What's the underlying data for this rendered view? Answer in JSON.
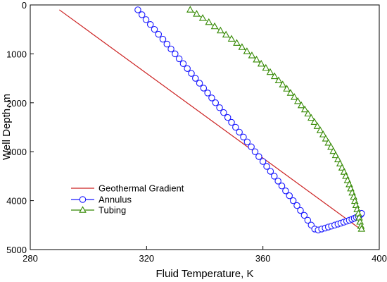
{
  "chart_data": {
    "type": "line",
    "xlabel": "Fluid Temperature, K",
    "ylabel": "Well Depth, m",
    "xlim": [
      280,
      400
    ],
    "ylim": [
      0,
      5000
    ],
    "y_inverted": true,
    "xticks": [
      280,
      320,
      360,
      400
    ],
    "yticks": [
      0,
      1000,
      2000,
      3000,
      4000,
      5000
    ],
    "grid": false,
    "legend_position": "lower-left",
    "colors": {
      "geothermal": "#cc2222",
      "annulus": "#1a1aff",
      "tubing": "#338800",
      "overlap": "#8a5a1a"
    },
    "series": [
      {
        "name": "Geothermal Gradient",
        "style": "line",
        "x": [
          290.0,
          393.5
        ],
        "y": [
          100,
          4580
        ]
      },
      {
        "name": "Annulus",
        "style": "line-circle-markers",
        "x": [
          317.0,
          318.4,
          319.8,
          321.3,
          322.7,
          324.1,
          325.6,
          327.0,
          328.4,
          329.8,
          331.2,
          332.6,
          334.0,
          335.4,
          336.8,
          338.2,
          339.6,
          341.0,
          342.4,
          343.7,
          345.1,
          346.5,
          347.9,
          349.2,
          350.6,
          351.9,
          353.3,
          354.6,
          356.0,
          357.3,
          358.6,
          360.0,
          361.3,
          362.6,
          363.9,
          365.2,
          366.5,
          367.8,
          369.1,
          370.4,
          371.7,
          372.9,
          374.2,
          375.4,
          376.6,
          377.8,
          379.0,
          380.2,
          381.4,
          382.5,
          383.6,
          384.7,
          385.8,
          386.8,
          387.8,
          388.8,
          389.7,
          390.6,
          391.4,
          392.1,
          392.8,
          393.3,
          393.7,
          393.9
        ],
        "y": [
          100,
          200,
          300,
          400,
          500,
          600,
          700,
          800,
          900,
          1000,
          1100,
          1200,
          1300,
          1400,
          1500,
          1600,
          1700,
          1800,
          1900,
          2000,
          2100,
          2200,
          2300,
          2400,
          2500,
          2600,
          2700,
          2800,
          2900,
          3000,
          3100,
          3200,
          3300,
          3400,
          3500,
          3600,
          3700,
          3800,
          3900,
          4000,
          4100,
          4200,
          4300,
          4400,
          4500,
          4580,
          4600,
          4580,
          4560,
          4540,
          4520,
          4500,
          4480,
          4460,
          4440,
          4420,
          4400,
          4380,
          4360,
          4340,
          4320,
          4300,
          4280,
          4260
        ]
      },
      {
        "name": "Tubing",
        "style": "line-triangle-markers",
        "x": [
          335.0,
          337.2,
          339.3,
          341.4,
          343.4,
          345.4,
          347.3,
          349.2,
          351.0,
          352.8,
          354.5,
          356.2,
          357.8,
          359.4,
          361.0,
          362.5,
          364.0,
          365.4,
          366.8,
          368.2,
          369.5,
          370.8,
          372.0,
          373.2,
          374.4,
          375.5,
          376.6,
          377.7,
          378.7,
          379.7,
          380.7,
          381.6,
          382.5,
          383.4,
          384.2,
          385.0,
          385.8,
          386.5,
          387.2,
          387.9,
          388.5,
          389.1,
          389.7,
          390.2,
          390.7,
          391.2,
          391.6,
          392.0,
          392.4,
          392.8,
          393.1,
          393.4,
          393.7,
          393.9
        ],
        "y": [
          100,
          185,
          270,
          355,
          440,
          525,
          610,
          695,
          780,
          865,
          950,
          1035,
          1120,
          1205,
          1290,
          1375,
          1460,
          1545,
          1630,
          1715,
          1800,
          1885,
          1970,
          2055,
          2140,
          2225,
          2310,
          2395,
          2480,
          2565,
          2650,
          2735,
          2820,
          2905,
          2990,
          3075,
          3160,
          3245,
          3330,
          3415,
          3500,
          3585,
          3670,
          3755,
          3840,
          3925,
          4010,
          4095,
          4180,
          4265,
          4350,
          4435,
          4520,
          4580
        ]
      }
    ]
  }
}
